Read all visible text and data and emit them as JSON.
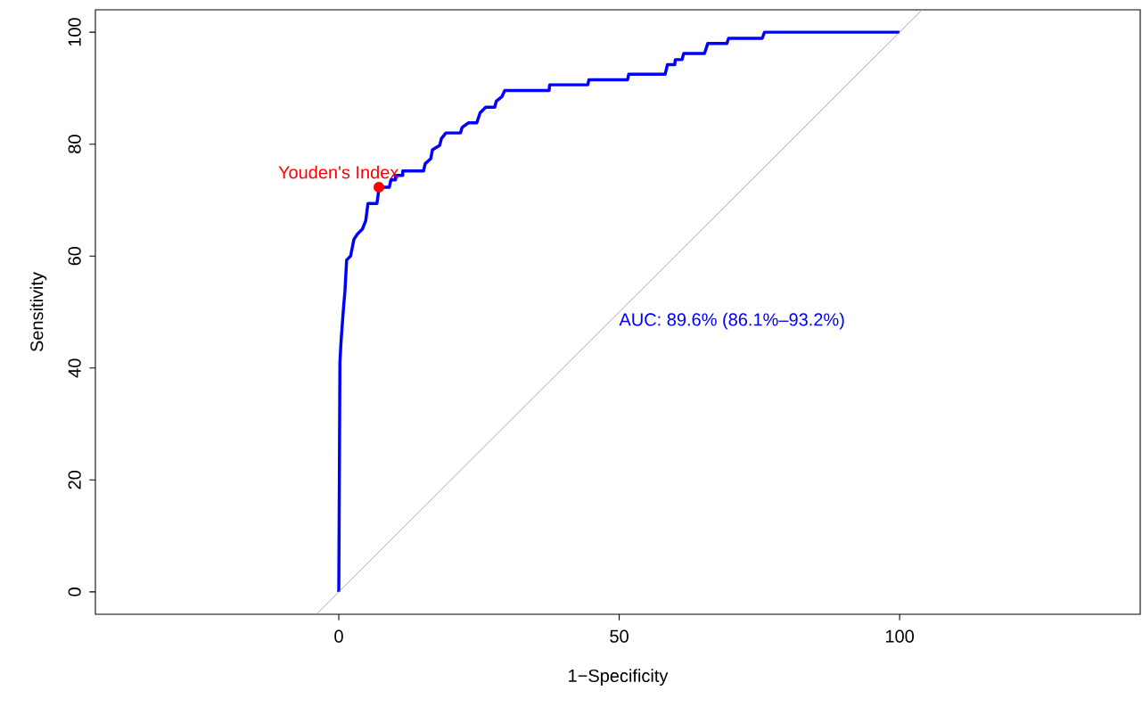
{
  "chart_data": {
    "type": "line",
    "xlabel": "1−Specificity",
    "ylabel": "Sensitivity",
    "xlim": [
      -43.4,
      142.9
    ],
    "ylim": [
      -4,
      104
    ],
    "xticks": [
      0,
      50,
      100
    ],
    "yticks": [
      0,
      20,
      40,
      60,
      80,
      100
    ],
    "marker": "none",
    "line_style": "solid",
    "series": [
      {
        "color": "#0000ff",
        "x": [
          0,
          0.2,
          0.4,
          0.8,
          1.1,
          1.4,
          2.1,
          2.7,
          3.3,
          4.2,
          4.8,
          5.2,
          6.8,
          7.2,
          9.0,
          9.3,
          10.1,
          10.1,
          11.4,
          11.4,
          15.1,
          15.4,
          16.4,
          16.7,
          18,
          18.3,
          19.1,
          21.7,
          22,
          23.1,
          24.6,
          25.2,
          26.2,
          27.8,
          28.1,
          29.1,
          29.6,
          37.5,
          37.6,
          44.4,
          44.6,
          51.5,
          51.7,
          58.2,
          58.6,
          59.9,
          60,
          61.2,
          61.5,
          65.2,
          65.8,
          69.2,
          69.5,
          75.5,
          75.9,
          100
        ],
        "values": [
          0,
          41,
          44.7,
          50.2,
          53.8,
          59.3,
          60,
          63,
          63.9,
          64.8,
          66.3,
          69.4,
          69.4,
          72.3,
          72.3,
          73.6,
          73.6,
          74.4,
          74.4,
          75.2,
          75.2,
          76.5,
          77.4,
          79,
          79.8,
          81,
          82,
          82,
          83,
          83.8,
          83.8,
          85.6,
          86.6,
          86.6,
          87.7,
          88.5,
          89.6,
          89.6,
          90.6,
          90.6,
          91.5,
          91.5,
          92.5,
          92.5,
          94.2,
          94.2,
          95.1,
          95.1,
          96.2,
          96.2,
          98,
          98,
          98.9,
          98.9,
          100,
          100
        ]
      },
      {
        "type": "scatter",
        "color": "#ff0000",
        "marker": "circle",
        "x": [
          7.15
        ],
        "values": [
          72.3
        ]
      },
      {
        "color": "#a0a0a0",
        "x": [
          -4,
          104
        ],
        "values": [
          -4,
          104
        ]
      }
    ],
    "annotations": [
      {
        "text": "Youden's Index",
        "x": 7.15,
        "y": 72.3
      },
      "AUC: 89.6% (86.1%–93.2%)"
    ]
  }
}
